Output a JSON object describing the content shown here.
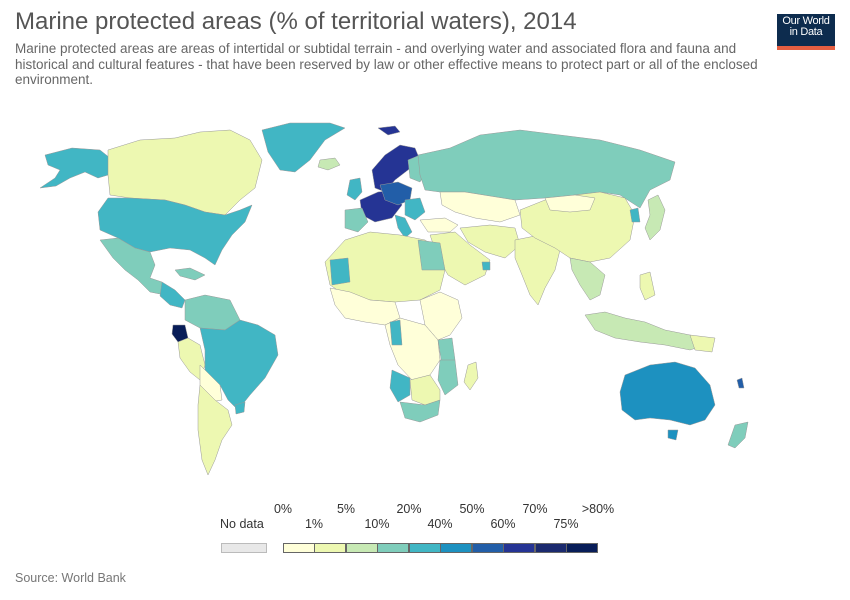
{
  "header": {
    "title": "Marine protected areas (% of territorial waters), 2014",
    "subtitle": "Marine protected areas are areas of intertidal or subtidal terrain - and overlying water and associated flora and fauna and historical and cultural features - that have been reserved by law or other effective means to protect part or all of the enclosed environment."
  },
  "logo": {
    "line1": "Our World",
    "line2": "in Data"
  },
  "legend": {
    "no_data_label": "No data",
    "top_labels": [
      "0%",
      "5%",
      "20%",
      "50%",
      "70%",
      ">80%"
    ],
    "bottom_labels": [
      "1%",
      "10%",
      "40%",
      "60%",
      "75%"
    ],
    "colors": [
      "#ffffd9",
      "#edf8b1",
      "#c7e9b4",
      "#7fcdbb",
      "#41b6c4",
      "#1d91c0",
      "#225ea8",
      "#253494",
      "#1b2a6e",
      "#081d58"
    ],
    "no_data_color": "#e8e8e8"
  },
  "source": "Source: World Bank"
}
